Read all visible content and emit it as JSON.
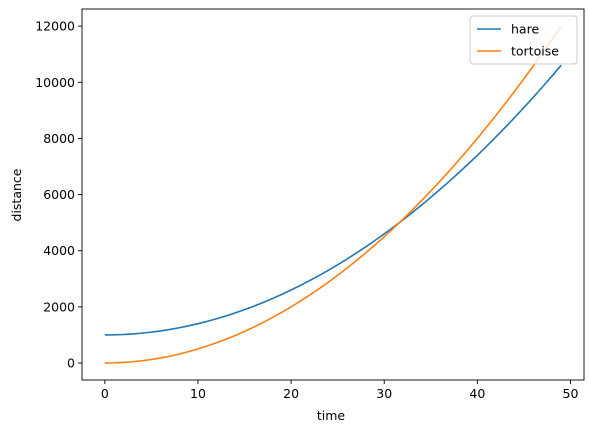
{
  "chart_data": {
    "type": "line",
    "xlabel": "time",
    "ylabel": "distance",
    "xlim": [
      -2.45,
      51.45
    ],
    "ylim": [
      -605,
      12610
    ],
    "xticks": [
      0,
      10,
      20,
      30,
      40,
      50
    ],
    "yticks": [
      0,
      2000,
      4000,
      6000,
      8000,
      10000,
      12000
    ],
    "grid": false,
    "legend_position": "top-right",
    "series": [
      {
        "name": "hare",
        "color": "#1f77b4",
        "x": [
          0,
          1,
          2,
          3,
          4,
          5,
          6,
          7,
          8,
          9,
          10,
          11,
          12,
          13,
          14,
          15,
          16,
          17,
          18,
          19,
          20,
          21,
          22,
          23,
          24,
          25,
          26,
          27,
          28,
          29,
          30,
          31,
          32,
          33,
          34,
          35,
          36,
          37,
          38,
          39,
          40,
          41,
          42,
          43,
          44,
          45,
          46,
          47,
          48,
          49
        ],
        "y": [
          1000,
          1004,
          1016,
          1036,
          1064,
          1100,
          1144,
          1196,
          1256,
          1324,
          1400,
          1484,
          1576,
          1676,
          1784,
          1900,
          2024,
          2156,
          2296,
          2444,
          2600,
          2764,
          2936,
          3116,
          3304,
          3500,
          3704,
          3916,
          4136,
          4364,
          4600,
          4844,
          5096,
          5356,
          5624,
          5900,
          6184,
          6476,
          6776,
          7084,
          7400,
          7724,
          8056,
          8396,
          8744,
          9100,
          9464,
          9836,
          10216,
          10604
        ]
      },
      {
        "name": "tortoise",
        "color": "#ff7f0e",
        "x": [
          0,
          1,
          2,
          3,
          4,
          5,
          6,
          7,
          8,
          9,
          10,
          11,
          12,
          13,
          14,
          15,
          16,
          17,
          18,
          19,
          20,
          21,
          22,
          23,
          24,
          25,
          26,
          27,
          28,
          29,
          30,
          31,
          32,
          33,
          34,
          35,
          36,
          37,
          38,
          39,
          40,
          41,
          42,
          43,
          44,
          45,
          46,
          47,
          48,
          49
        ],
        "y": [
          0,
          5,
          20,
          45,
          80,
          125,
          180,
          245,
          320,
          405,
          500,
          605,
          720,
          845,
          980,
          1125,
          1280,
          1445,
          1620,
          1805,
          2000,
          2205,
          2420,
          2645,
          2880,
          3125,
          3380,
          3645,
          3920,
          4205,
          4500,
          4805,
          5120,
          5445,
          5780,
          6125,
          6480,
          6845,
          7220,
          7605,
          8000,
          8405,
          8820,
          9245,
          9680,
          10125,
          10580,
          11045,
          11520,
          12005
        ]
      }
    ]
  }
}
